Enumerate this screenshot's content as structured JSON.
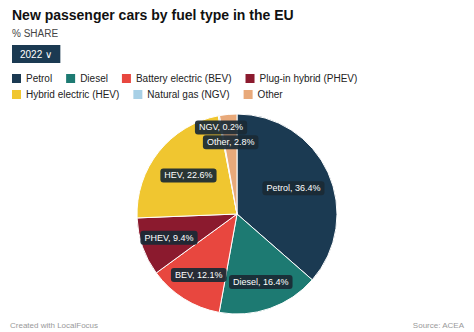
{
  "chart_data": {
    "type": "pie",
    "title": "New passenger cars by fuel type in the EU",
    "subtitle": "% SHARE",
    "annotations": [
      "2022  ∨",
      "Created with LocalFocus",
      "Source: ACEA"
    ],
    "categories": [
      "Petrol",
      "Diesel",
      "Battery electric (BEV)",
      "Plug-in hybrid (PHEV)",
      "Hybrid electric (HEV)",
      "Natural gas (NGV)",
      "Other"
    ],
    "values": [
      36.4,
      16.4,
      12.1,
      9.4,
      22.6,
      0.2,
      2.8
    ],
    "value_labels": [
      "Petrol, 36.4%",
      "Diesel, 16.4%",
      "BEV, 12.1%",
      "PHEV, 9.4%",
      "HEV, 22.6%",
      "NGV, 0.2%",
      "Other, 2.8%"
    ],
    "colors": [
      "#1b3a52",
      "#1d7a72",
      "#e8473f",
      "#8b1a2e",
      "#f0c630",
      "#a8d0e6",
      "#e8a97a"
    ],
    "data_labels": true,
    "legend": "top"
  }
}
